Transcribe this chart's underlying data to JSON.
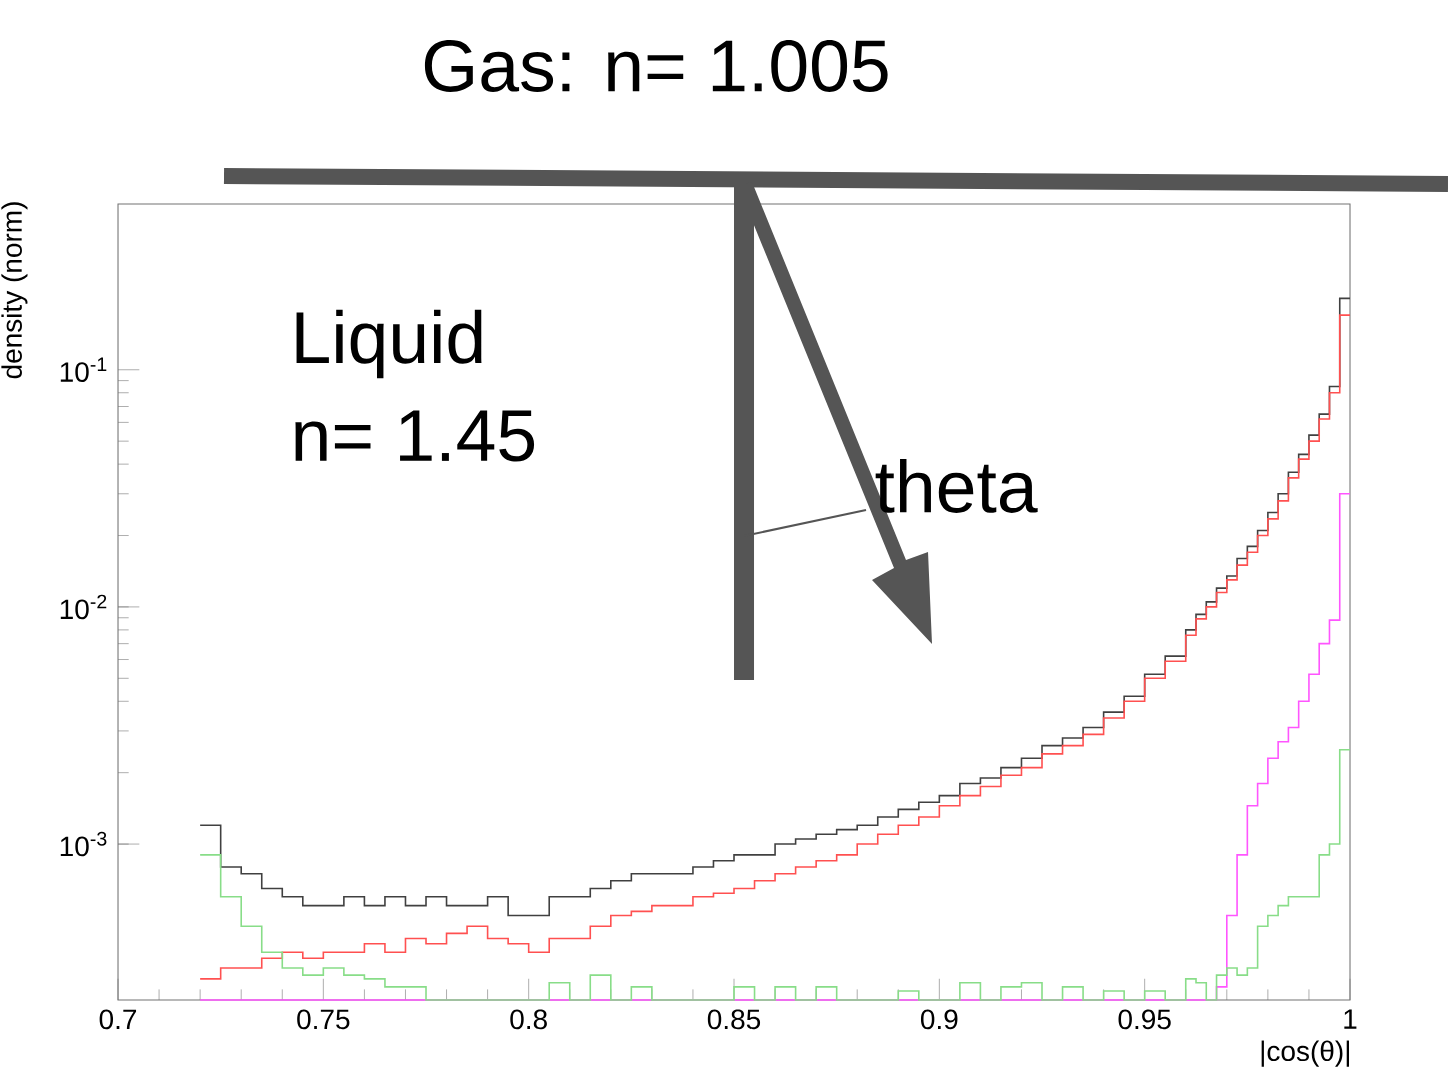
{
  "chart_data": {
    "type": "histogram",
    "xlabel": "|cos(θ)|",
    "ylabel": "density (norm)",
    "log": "y",
    "xlim": [
      0.7,
      1.0
    ],
    "xticks": [
      0.7,
      0.75,
      0.8,
      0.85,
      0.9,
      0.95,
      1
    ],
    "ylim": [
      0.00022,
      0.5
    ],
    "yticks": [
      {
        "value": 0.001,
        "label": "10$^{-3}$"
      },
      {
        "value": 0.01,
        "label": "10$^{-2}$"
      },
      {
        "value": 0.1,
        "label": "10$^{-1}$"
      }
    ],
    "annotations": [
      "Gas: n= 1.005",
      "Liquid",
      "n= 1.45",
      "theta"
    ],
    "bins": [
      0.72,
      0.725,
      0.73,
      0.735,
      0.74,
      0.745,
      0.75,
      0.755,
      0.76,
      0.765,
      0.77,
      0.775,
      0.78,
      0.785,
      0.79,
      0.795,
      0.8,
      0.805,
      0.81,
      0.815,
      0.82,
      0.825,
      0.83,
      0.835,
      0.84,
      0.845,
      0.85,
      0.855,
      0.86,
      0.865,
      0.87,
      0.875,
      0.88,
      0.885,
      0.89,
      0.895,
      0.9,
      0.905,
      0.91,
      0.915,
      0.92,
      0.925,
      0.93,
      0.935,
      0.94,
      0.945,
      0.95,
      0.955,
      0.96,
      0.9625,
      0.965,
      0.9675,
      0.97,
      0.9725,
      0.975,
      0.9775,
      0.98,
      0.9825,
      0.985,
      0.9875,
      0.99,
      0.9925,
      0.995,
      0.9975,
      1.0
    ],
    "series": [
      {
        "color": "#404040",
        "values": [
          0.0012,
          0.0008,
          0.00075,
          0.00065,
          0.0006,
          0.00055,
          0.00055,
          0.0006,
          0.00055,
          0.0006,
          0.00055,
          0.0006,
          0.00055,
          0.00055,
          0.0006,
          0.0005,
          0.0005,
          0.0006,
          0.0006,
          0.00065,
          0.0007,
          0.00075,
          0.00075,
          0.00075,
          0.0008,
          0.00085,
          0.0009,
          0.0009,
          0.001,
          0.00105,
          0.0011,
          0.00115,
          0.0012,
          0.0013,
          0.0014,
          0.0015,
          0.0016,
          0.0018,
          0.0019,
          0.0021,
          0.0023,
          0.0026,
          0.0028,
          0.0031,
          0.0036,
          0.0042,
          0.0052,
          0.0062,
          0.008,
          0.0093,
          0.0105,
          0.012,
          0.0135,
          0.016,
          0.018,
          0.021,
          0.025,
          0.03,
          0.037,
          0.044,
          0.053,
          0.065,
          0.085,
          0.2
        ]
      },
      {
        "color": "#ff5050",
        "values": [
          0.00027,
          0.0003,
          0.0003,
          0.00033,
          0.00035,
          0.00033,
          0.00035,
          0.00035,
          0.00038,
          0.00035,
          0.0004,
          0.00038,
          0.00042,
          0.00045,
          0.0004,
          0.00038,
          0.00035,
          0.0004,
          0.0004,
          0.00045,
          0.0005,
          0.00052,
          0.00055,
          0.00055,
          0.0006,
          0.00062,
          0.00065,
          0.0007,
          0.00075,
          0.0008,
          0.00085,
          0.0009,
          0.001,
          0.0011,
          0.0012,
          0.0013,
          0.00145,
          0.0016,
          0.00175,
          0.00195,
          0.0021,
          0.0024,
          0.0026,
          0.0029,
          0.0034,
          0.004,
          0.005,
          0.0059,
          0.0076,
          0.0089,
          0.01,
          0.0115,
          0.013,
          0.015,
          0.017,
          0.02,
          0.0235,
          0.028,
          0.035,
          0.042,
          0.05,
          0.062,
          0.08,
          0.17
        ]
      },
      {
        "color": "#ff55ff",
        "values": [
          null,
          null,
          null,
          null,
          null,
          null,
          null,
          null,
          null,
          null,
          null,
          null,
          null,
          null,
          null,
          null,
          null,
          null,
          null,
          null,
          null,
          null,
          null,
          null,
          null,
          null,
          null,
          null,
          null,
          null,
          null,
          null,
          null,
          null,
          null,
          null,
          null,
          null,
          null,
          null,
          null,
          null,
          null,
          null,
          null,
          null,
          null,
          null,
          null,
          null,
          null,
          0.00025,
          0.0005,
          0.0009,
          0.00145,
          0.0018,
          0.0023,
          0.0027,
          0.0031,
          0.004,
          0.0052,
          0.007,
          0.0088,
          0.03
        ]
      },
      {
        "color": "#88dd88",
        "values": [
          0.0009,
          0.0006,
          0.00045,
          0.00035,
          0.0003,
          0.00028,
          0.0003,
          0.00028,
          0.00027,
          0.00025,
          0.00025,
          null,
          null,
          null,
          null,
          null,
          null,
          0.00026,
          null,
          0.00028,
          null,
          0.00025,
          null,
          null,
          null,
          null,
          0.00025,
          null,
          0.00025,
          null,
          0.00025,
          null,
          null,
          null,
          0.00024,
          null,
          null,
          0.00026,
          null,
          0.00025,
          0.00026,
          null,
          0.00025,
          null,
          0.00024,
          null,
          0.00024,
          null,
          0.00027,
          0.00026,
          null,
          0.00028,
          0.0003,
          0.00028,
          0.0003,
          0.00045,
          0.0005,
          0.00055,
          0.0006,
          0.0006,
          0.0006,
          0.0009,
          0.001,
          0.0025
        ]
      }
    ]
  }
}
